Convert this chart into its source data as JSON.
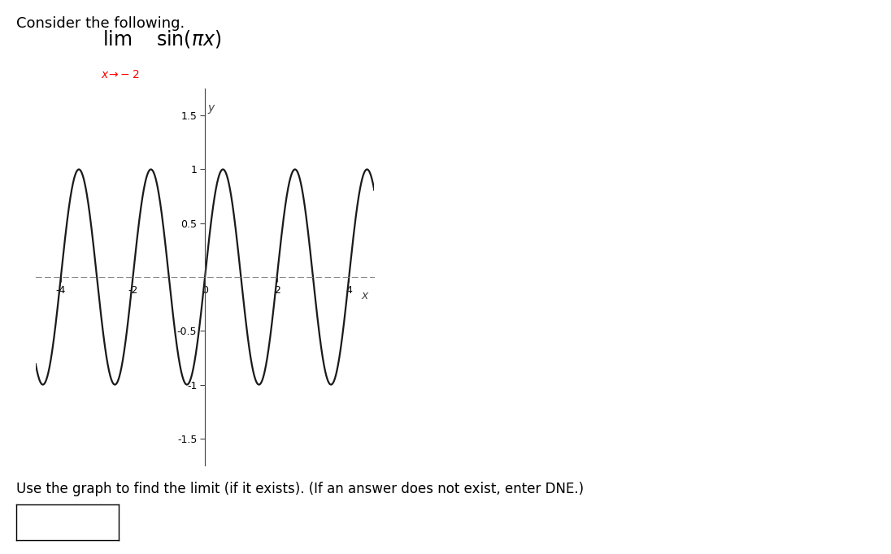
{
  "title_text": "Consider the following.",
  "xlabel": "x",
  "ylabel": "y",
  "xlim": [
    -4.7,
    4.7
  ],
  "ylim": [
    -1.75,
    1.75
  ],
  "xticks": [
    -4,
    -2,
    0,
    2,
    4
  ],
  "yticks": [
    -1.5,
    -1,
    -0.5,
    0.5,
    1,
    1.5
  ],
  "xtick_labels": [
    "-4",
    "-2",
    "0",
    "2",
    "4"
  ],
  "ytick_labels": [
    "-1.5",
    "-1",
    "-0.5",
    "0.5",
    "1",
    "1.5"
  ],
  "line_color": "#1a1a1a",
  "line_width": 1.6,
  "bg_color": "#ffffff",
  "footer_text": "Use the graph to find the limit (if it exists). (If an answer does not exist, enter DNE.)"
}
